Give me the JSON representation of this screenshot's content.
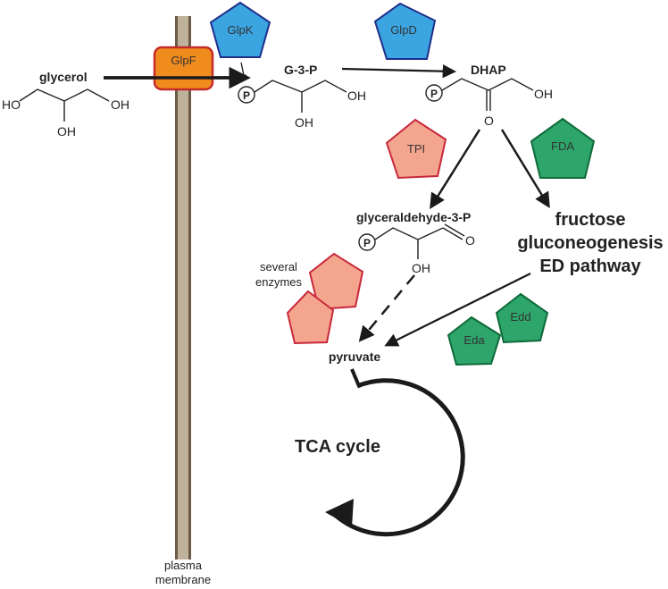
{
  "colors": {
    "membrane": "#bfb29a",
    "membrane_edge": "#6b5a48",
    "blue_enzyme": "#3aa5e0",
    "blue_edge": "#1f2f8a",
    "salmon_enzyme": "#f4a58e",
    "salmon_edge": "#c8283a",
    "green_enzyme": "#2ea56a",
    "green_edge": "#0f6a3a",
    "orange_transporter": "#f08c1e",
    "orange_edge": "#c42a2a",
    "arrow": "#1a1a1a"
  },
  "membrane": {
    "label_line1": "plasma",
    "label_line2": "membrane"
  },
  "transporter": {
    "label": "GlpF"
  },
  "enzymes": {
    "glpk": "GlpK",
    "glpd": "GlpD",
    "tpi": "TPI",
    "fda": "FDA",
    "eda": "Eda",
    "edd": "Edd"
  },
  "metabolites": {
    "glycerol": "glycerol",
    "g3p": "G-3-P",
    "dhap": "DHAP",
    "glyceraldehyde_3p": "glyceraldehyde-3-P",
    "pyruvate": "pyruvate"
  },
  "pathway_text": {
    "line1": "fructose",
    "line2": "gluconeogenesis",
    "line3": "ED pathway"
  },
  "several_enzymes": {
    "line1": "several",
    "line2": "enzymes"
  },
  "tca": {
    "label": "TCA cycle"
  },
  "chem_labels": {
    "ho": "HO",
    "oh": "OH",
    "o": "O",
    "p": "P"
  }
}
